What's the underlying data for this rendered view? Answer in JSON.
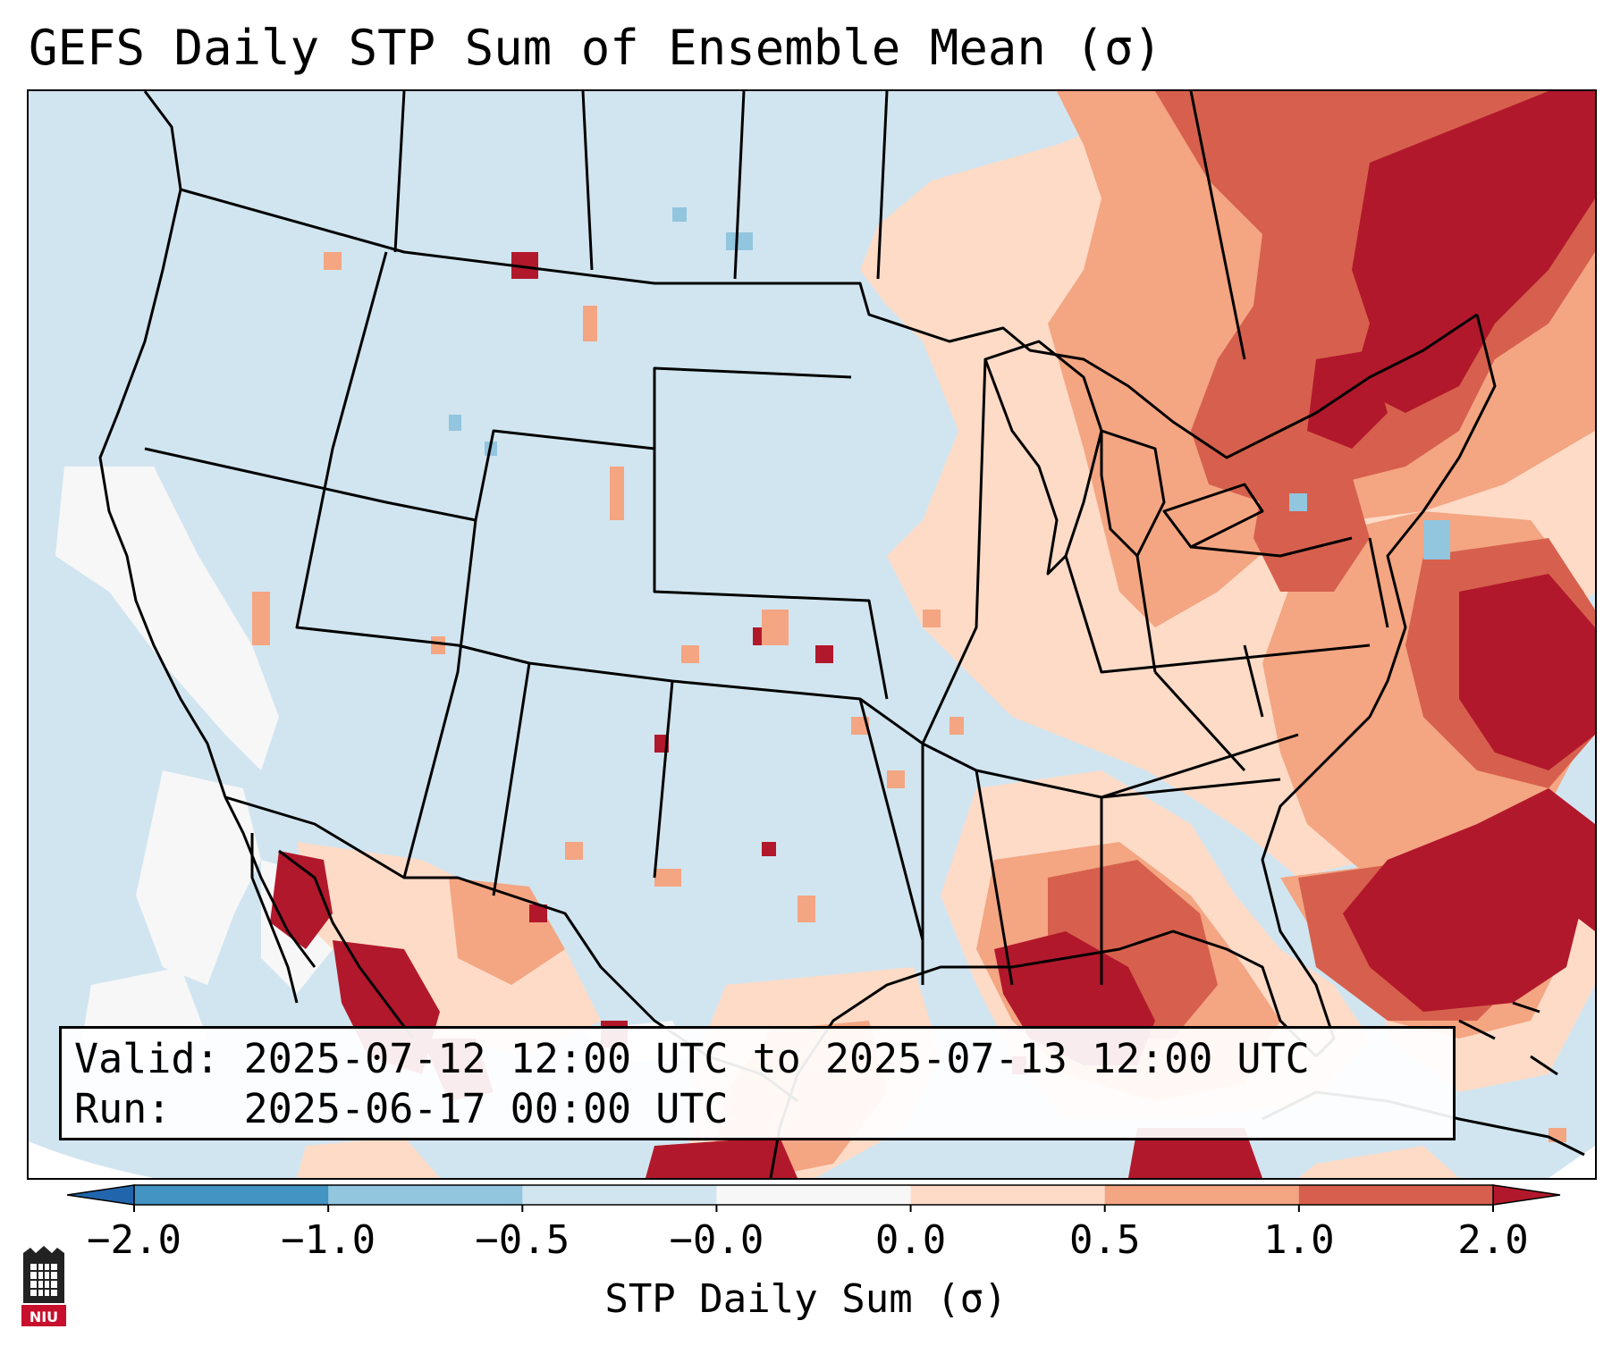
{
  "title": "GEFS Daily STP Sum of Ensemble Mean (σ)",
  "annotation": {
    "valid_line": "Valid: 2025-07-12 12:00 UTC to 2025-07-13 12:00 UTC",
    "run_line": "Run:   2025-06-17 00:00 UTC"
  },
  "colorbar": {
    "label": "STP Daily Sum (σ)",
    "ticks": [
      "−2.0",
      "−1.0",
      "−0.5",
      "−0.0",
      "0.0",
      "0.5",
      "1.0",
      "2.0"
    ],
    "colors": [
      "#2166ac",
      "#4393c3",
      "#92c5de",
      "#d1e5f0",
      "#f7f7f7",
      "#fddbc7",
      "#f4a582",
      "#d6604d",
      "#b2182b"
    ],
    "extend": "both"
  },
  "logo": {
    "text": "NIU"
  },
  "map": {
    "region": "Continental United States",
    "background_color": "#d1e5f0",
    "land_edge_color": "#000000"
  }
}
